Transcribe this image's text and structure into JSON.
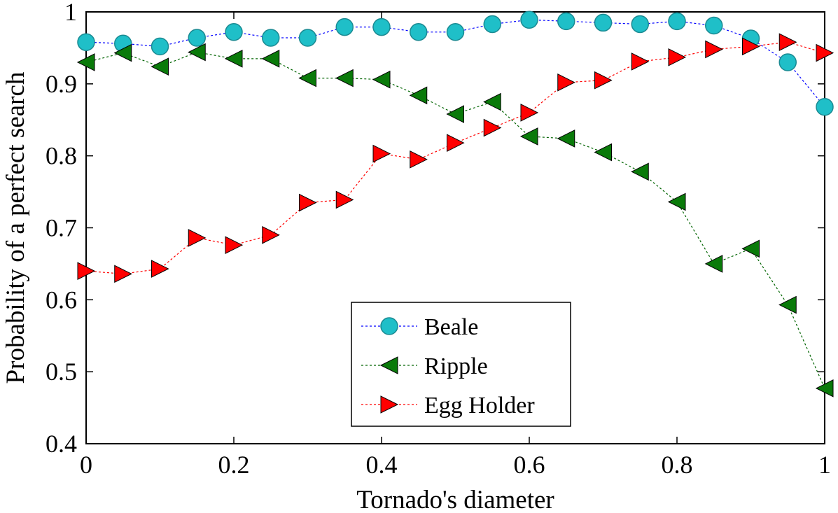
{
  "chart_data": {
    "type": "line",
    "title": "",
    "xlabel": "Tornado's diameter",
    "ylabel": "Probability of a perfect search",
    "xlim": [
      0,
      1
    ],
    "ylim": [
      0.4,
      1
    ],
    "x_ticks": [
      0,
      0.2,
      0.4,
      0.6,
      0.8,
      1
    ],
    "x_tick_labels": [
      "0",
      "0.2",
      "0.4",
      "0.6",
      "0.8",
      "1"
    ],
    "y_ticks": [
      0.4,
      0.5,
      0.6,
      0.7,
      0.8,
      0.9,
      1
    ],
    "y_tick_labels": [
      "0.4",
      "0.5",
      "0.6",
      "0.7",
      "0.8",
      "0.9",
      "1"
    ],
    "grid": false,
    "legend_position": "bottom-center",
    "x": [
      0,
      0.05,
      0.1,
      0.15,
      0.2,
      0.25,
      0.3,
      0.35,
      0.4,
      0.45,
      0.5,
      0.55,
      0.6,
      0.65,
      0.7,
      0.75,
      0.8,
      0.85,
      0.9,
      0.95,
      1
    ],
    "series": [
      {
        "name": "Beale",
        "marker": "circle",
        "color": "#1fbfc8",
        "line_color": "#0000ff",
        "values": [
          0.958,
          0.956,
          0.952,
          0.964,
          0.972,
          0.964,
          0.964,
          0.979,
          0.979,
          0.972,
          0.972,
          0.983,
          0.989,
          0.987,
          0.985,
          0.983,
          0.987,
          0.981,
          0.963,
          0.93,
          0.868
        ]
      },
      {
        "name": "Ripple",
        "marker": "triangle-left",
        "color": "#0a7a0a",
        "line_color": "#006400",
        "values": [
          0.93,
          0.943,
          0.924,
          0.944,
          0.935,
          0.935,
          0.908,
          0.908,
          0.906,
          0.884,
          0.858,
          0.875,
          0.827,
          0.824,
          0.805,
          0.778,
          0.736,
          0.65,
          0.671,
          0.593,
          0.477
        ]
      },
      {
        "name": "Egg Holder",
        "marker": "triangle-right",
        "color": "#ff0000",
        "line_color": "#ff0000",
        "values": [
          0.64,
          0.636,
          0.643,
          0.686,
          0.676,
          0.69,
          0.735,
          0.739,
          0.803,
          0.795,
          0.818,
          0.839,
          0.86,
          0.902,
          0.905,
          0.931,
          0.937,
          0.948,
          0.952,
          0.958,
          0.943
        ]
      }
    ]
  }
}
